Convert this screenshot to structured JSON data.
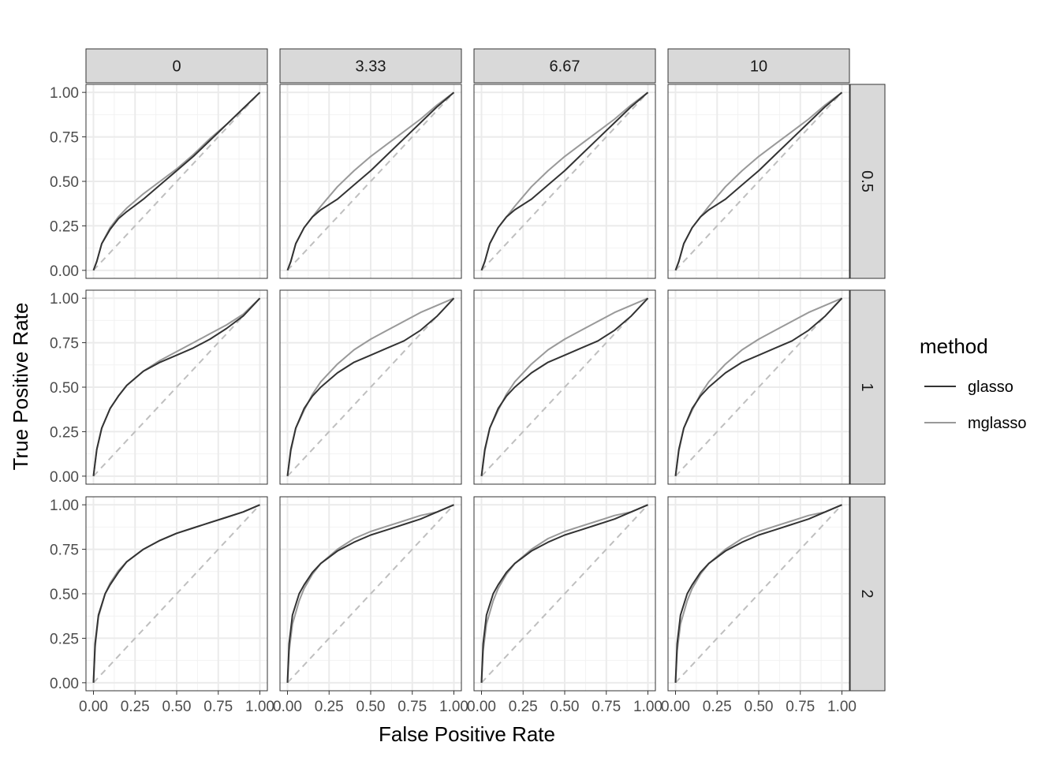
{
  "chart_data": {
    "type": "line",
    "xlabel": "False Positive Rate",
    "ylabel": "True Positive Rate",
    "xlim": [
      0,
      1
    ],
    "ylim": [
      0,
      1
    ],
    "x_ticks": [
      "0.00",
      "0.25",
      "0.50",
      "0.75",
      "1.00"
    ],
    "y_ticks": [
      "0.00",
      "0.25",
      "0.50",
      "0.75",
      "1.00"
    ],
    "grid": true,
    "reference_line": "diagonal dashed y = x",
    "legend": {
      "title": "method",
      "position": "right",
      "entries": [
        {
          "name": "glasso",
          "color": "#333333"
        },
        {
          "name": "mglasso",
          "color": "#999999"
        }
      ]
    },
    "facet_cols": [
      "0",
      "3.33",
      "6.67",
      "10"
    ],
    "facet_rows": [
      "0.5",
      "1",
      "2"
    ],
    "panels": [
      {
        "col": "0",
        "row": "0.5",
        "series": [
          {
            "name": "glasso",
            "x": [
              0,
              0.02,
              0.05,
              0.1,
              0.15,
              0.2,
              0.3,
              0.4,
              0.5,
              0.6,
              0.7,
              0.8,
              0.9,
              1
            ],
            "y": [
              0,
              0.05,
              0.15,
              0.23,
              0.29,
              0.33,
              0.4,
              0.48,
              0.56,
              0.64,
              0.73,
              0.82,
              0.91,
              1
            ]
          },
          {
            "name": "mglasso",
            "x": [
              0,
              0.02,
              0.05,
              0.1,
              0.15,
              0.2,
              0.3,
              0.4,
              0.5,
              0.6,
              0.7,
              0.8,
              0.9,
              1
            ],
            "y": [
              0,
              0.05,
              0.15,
              0.24,
              0.3,
              0.35,
              0.43,
              0.5,
              0.57,
              0.65,
              0.74,
              0.82,
              0.91,
              1
            ]
          }
        ]
      },
      {
        "col": "3.33",
        "row": "0.5",
        "series": [
          {
            "name": "glasso",
            "x": [
              0,
              0.02,
              0.05,
              0.1,
              0.15,
              0.2,
              0.3,
              0.4,
              0.5,
              0.6,
              0.7,
              0.8,
              0.9,
              1
            ],
            "y": [
              0,
              0.05,
              0.15,
              0.24,
              0.3,
              0.34,
              0.4,
              0.48,
              0.56,
              0.65,
              0.74,
              0.83,
              0.92,
              1
            ]
          },
          {
            "name": "mglasso",
            "x": [
              0,
              0.02,
              0.05,
              0.1,
              0.15,
              0.2,
              0.3,
              0.4,
              0.5,
              0.6,
              0.7,
              0.8,
              0.9,
              1
            ],
            "y": [
              0,
              0.05,
              0.15,
              0.24,
              0.3,
              0.36,
              0.47,
              0.56,
              0.64,
              0.71,
              0.78,
              0.85,
              0.93,
              1
            ]
          }
        ]
      },
      {
        "col": "6.67",
        "row": "0.5",
        "series": [
          {
            "name": "glasso",
            "x": [
              0,
              0.02,
              0.05,
              0.1,
              0.15,
              0.2,
              0.3,
              0.4,
              0.5,
              0.6,
              0.7,
              0.8,
              0.9,
              1
            ],
            "y": [
              0,
              0.05,
              0.15,
              0.24,
              0.3,
              0.34,
              0.4,
              0.48,
              0.56,
              0.65,
              0.74,
              0.83,
              0.92,
              1
            ]
          },
          {
            "name": "mglasso",
            "x": [
              0,
              0.02,
              0.05,
              0.1,
              0.15,
              0.2,
              0.3,
              0.4,
              0.5,
              0.6,
              0.7,
              0.8,
              0.9,
              1
            ],
            "y": [
              0,
              0.05,
              0.15,
              0.24,
              0.3,
              0.36,
              0.47,
              0.56,
              0.64,
              0.71,
              0.78,
              0.85,
              0.93,
              1
            ]
          }
        ]
      },
      {
        "col": "10",
        "row": "0.5",
        "series": [
          {
            "name": "glasso",
            "x": [
              0,
              0.02,
              0.05,
              0.1,
              0.15,
              0.2,
              0.3,
              0.4,
              0.5,
              0.6,
              0.7,
              0.8,
              0.9,
              1
            ],
            "y": [
              0,
              0.05,
              0.15,
              0.24,
              0.3,
              0.34,
              0.4,
              0.48,
              0.56,
              0.65,
              0.74,
              0.83,
              0.92,
              1
            ]
          },
          {
            "name": "mglasso",
            "x": [
              0,
              0.02,
              0.05,
              0.1,
              0.15,
              0.2,
              0.3,
              0.4,
              0.5,
              0.6,
              0.7,
              0.8,
              0.9,
              1
            ],
            "y": [
              0,
              0.05,
              0.15,
              0.24,
              0.3,
              0.36,
              0.47,
              0.56,
              0.64,
              0.71,
              0.78,
              0.85,
              0.93,
              1
            ]
          }
        ]
      },
      {
        "col": "0",
        "row": "1",
        "series": [
          {
            "name": "glasso",
            "x": [
              0,
              0.02,
              0.05,
              0.1,
              0.15,
              0.2,
              0.3,
              0.4,
              0.5,
              0.6,
              0.7,
              0.8,
              0.9,
              1
            ],
            "y": [
              0,
              0.15,
              0.27,
              0.38,
              0.45,
              0.51,
              0.59,
              0.64,
              0.68,
              0.72,
              0.77,
              0.83,
              0.9,
              1
            ]
          },
          {
            "name": "mglasso",
            "x": [
              0,
              0.02,
              0.05,
              0.1,
              0.15,
              0.2,
              0.3,
              0.4,
              0.5,
              0.6,
              0.7,
              0.8,
              0.9,
              1
            ],
            "y": [
              0,
              0.15,
              0.27,
              0.38,
              0.45,
              0.51,
              0.59,
              0.65,
              0.7,
              0.75,
              0.8,
              0.85,
              0.91,
              1
            ]
          }
        ]
      },
      {
        "col": "3.33",
        "row": "1",
        "series": [
          {
            "name": "glasso",
            "x": [
              0,
              0.02,
              0.05,
              0.1,
              0.15,
              0.2,
              0.3,
              0.4,
              0.5,
              0.6,
              0.7,
              0.8,
              0.9,
              1
            ],
            "y": [
              0,
              0.15,
              0.27,
              0.38,
              0.45,
              0.5,
              0.58,
              0.64,
              0.68,
              0.72,
              0.76,
              0.82,
              0.9,
              1
            ]
          },
          {
            "name": "mglasso",
            "x": [
              0,
              0.02,
              0.05,
              0.1,
              0.15,
              0.2,
              0.3,
              0.4,
              0.5,
              0.6,
              0.7,
              0.8,
              0.9,
              1
            ],
            "y": [
              0,
              0.14,
              0.27,
              0.37,
              0.46,
              0.53,
              0.63,
              0.71,
              0.77,
              0.82,
              0.87,
              0.92,
              0.96,
              1
            ]
          }
        ]
      },
      {
        "col": "6.67",
        "row": "1",
        "series": [
          {
            "name": "glasso",
            "x": [
              0,
              0.02,
              0.05,
              0.1,
              0.15,
              0.2,
              0.3,
              0.4,
              0.5,
              0.6,
              0.7,
              0.8,
              0.9,
              1
            ],
            "y": [
              0,
              0.15,
              0.27,
              0.38,
              0.45,
              0.5,
              0.58,
              0.64,
              0.68,
              0.72,
              0.76,
              0.82,
              0.9,
              1
            ]
          },
          {
            "name": "mglasso",
            "x": [
              0,
              0.02,
              0.05,
              0.1,
              0.15,
              0.2,
              0.3,
              0.4,
              0.5,
              0.6,
              0.7,
              0.8,
              0.9,
              1
            ],
            "y": [
              0,
              0.14,
              0.27,
              0.37,
              0.46,
              0.53,
              0.63,
              0.71,
              0.77,
              0.82,
              0.87,
              0.92,
              0.96,
              1
            ]
          }
        ]
      },
      {
        "col": "10",
        "row": "1",
        "series": [
          {
            "name": "glasso",
            "x": [
              0,
              0.02,
              0.05,
              0.1,
              0.15,
              0.2,
              0.3,
              0.4,
              0.5,
              0.6,
              0.7,
              0.8,
              0.9,
              1
            ],
            "y": [
              0,
              0.15,
              0.27,
              0.38,
              0.45,
              0.5,
              0.58,
              0.64,
              0.68,
              0.72,
              0.76,
              0.82,
              0.9,
              1
            ]
          },
          {
            "name": "mglasso",
            "x": [
              0,
              0.02,
              0.05,
              0.1,
              0.15,
              0.2,
              0.3,
              0.4,
              0.5,
              0.6,
              0.7,
              0.8,
              0.9,
              1
            ],
            "y": [
              0,
              0.14,
              0.27,
              0.37,
              0.46,
              0.53,
              0.63,
              0.71,
              0.77,
              0.82,
              0.87,
              0.92,
              0.96,
              1
            ]
          }
        ]
      },
      {
        "col": "0",
        "row": "2",
        "series": [
          {
            "name": "glasso",
            "x": [
              0,
              0.01,
              0.03,
              0.07,
              0.1,
              0.15,
              0.2,
              0.3,
              0.4,
              0.5,
              0.6,
              0.7,
              0.8,
              0.9,
              1
            ],
            "y": [
              0,
              0.22,
              0.38,
              0.5,
              0.55,
              0.62,
              0.68,
              0.75,
              0.8,
              0.84,
              0.87,
              0.9,
              0.93,
              0.96,
              1
            ]
          },
          {
            "name": "mglasso",
            "x": [
              0,
              0.01,
              0.03,
              0.07,
              0.1,
              0.15,
              0.2,
              0.3,
              0.4,
              0.5,
              0.6,
              0.7,
              0.8,
              0.9,
              1
            ],
            "y": [
              0,
              0.2,
              0.37,
              0.5,
              0.56,
              0.63,
              0.68,
              0.75,
              0.8,
              0.84,
              0.87,
              0.9,
              0.93,
              0.96,
              1
            ]
          }
        ]
      },
      {
        "col": "3.33",
        "row": "2",
        "series": [
          {
            "name": "glasso",
            "x": [
              0,
              0.01,
              0.03,
              0.07,
              0.1,
              0.15,
              0.2,
              0.3,
              0.4,
              0.5,
              0.6,
              0.7,
              0.8,
              0.9,
              1
            ],
            "y": [
              0,
              0.22,
              0.38,
              0.5,
              0.55,
              0.62,
              0.67,
              0.74,
              0.79,
              0.83,
              0.86,
              0.89,
              0.92,
              0.96,
              1
            ]
          },
          {
            "name": "mglasso",
            "x": [
              0,
              0.01,
              0.03,
              0.07,
              0.1,
              0.15,
              0.2,
              0.3,
              0.4,
              0.5,
              0.6,
              0.7,
              0.8,
              0.9,
              1
            ],
            "y": [
              0,
              0.18,
              0.33,
              0.46,
              0.53,
              0.61,
              0.67,
              0.75,
              0.81,
              0.85,
              0.88,
              0.91,
              0.94,
              0.96,
              1
            ]
          }
        ]
      },
      {
        "col": "6.67",
        "row": "2",
        "series": [
          {
            "name": "glasso",
            "x": [
              0,
              0.01,
              0.03,
              0.07,
              0.1,
              0.15,
              0.2,
              0.3,
              0.4,
              0.5,
              0.6,
              0.7,
              0.8,
              0.9,
              1
            ],
            "y": [
              0,
              0.22,
              0.38,
              0.5,
              0.55,
              0.62,
              0.67,
              0.74,
              0.79,
              0.83,
              0.86,
              0.89,
              0.92,
              0.96,
              1
            ]
          },
          {
            "name": "mglasso",
            "x": [
              0,
              0.01,
              0.03,
              0.07,
              0.1,
              0.15,
              0.2,
              0.3,
              0.4,
              0.5,
              0.6,
              0.7,
              0.8,
              0.9,
              1
            ],
            "y": [
              0,
              0.18,
              0.33,
              0.46,
              0.53,
              0.61,
              0.67,
              0.75,
              0.81,
              0.85,
              0.88,
              0.91,
              0.94,
              0.96,
              1
            ]
          }
        ]
      },
      {
        "col": "10",
        "row": "2",
        "series": [
          {
            "name": "glasso",
            "x": [
              0,
              0.01,
              0.03,
              0.07,
              0.1,
              0.15,
              0.2,
              0.3,
              0.4,
              0.5,
              0.6,
              0.7,
              0.8,
              0.9,
              1
            ],
            "y": [
              0,
              0.22,
              0.38,
              0.5,
              0.55,
              0.62,
              0.67,
              0.74,
              0.79,
              0.83,
              0.86,
              0.89,
              0.92,
              0.96,
              1
            ]
          },
          {
            "name": "mglasso",
            "x": [
              0,
              0.01,
              0.03,
              0.07,
              0.1,
              0.15,
              0.2,
              0.3,
              0.4,
              0.5,
              0.6,
              0.7,
              0.8,
              0.9,
              1
            ],
            "y": [
              0,
              0.18,
              0.33,
              0.46,
              0.53,
              0.61,
              0.67,
              0.75,
              0.81,
              0.85,
              0.88,
              0.91,
              0.94,
              0.96,
              1
            ]
          }
        ]
      }
    ]
  }
}
